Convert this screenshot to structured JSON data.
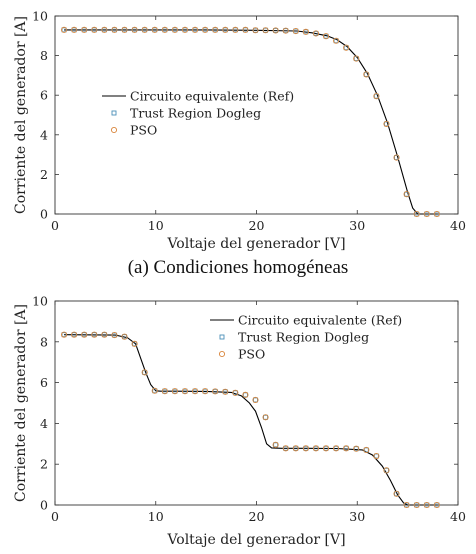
{
  "chart_data": [
    {
      "type": "line",
      "caption": "(a) Condiciones homogéneas",
      "xlabel": "Voltaje del generador [V]",
      "ylabel": "Corriente del generador [A]",
      "xlim": [
        0,
        40
      ],
      "ylim": [
        0,
        10
      ],
      "xticks": [
        0,
        10,
        20,
        30,
        40
      ],
      "yticks": [
        0,
        2,
        4,
        6,
        8,
        10
      ],
      "legend_placement": "center-right",
      "series": [
        {
          "name": "Circuito equivalente (Ref)",
          "style": "line",
          "color": "#000000",
          "x": [
            0.9,
            5,
            10,
            15,
            20,
            24,
            25.5,
            27,
            28,
            29,
            30,
            31,
            32,
            33,
            34,
            35,
            35.5,
            36,
            38
          ],
          "y": [
            9.3,
            9.3,
            9.3,
            9.3,
            9.28,
            9.24,
            9.15,
            9.0,
            8.8,
            8.45,
            7.9,
            7.1,
            6.0,
            4.6,
            2.9,
            1.1,
            0.3,
            0.0,
            0.0
          ]
        },
        {
          "name": "Trust Region Dogleg",
          "style": "marker-square",
          "color": "#4a90b8",
          "x": [
            0.9,
            1.9,
            2.9,
            3.9,
            4.9,
            5.9,
            6.9,
            7.9,
            8.9,
            9.9,
            10.9,
            11.9,
            12.9,
            13.9,
            14.9,
            15.9,
            16.9,
            17.9,
            18.9,
            19.9,
            20.9,
            21.9,
            22.9,
            23.9,
            24.9,
            25.9,
            26.9,
            27.9,
            28.9,
            29.9,
            30.9,
            31.9,
            32.9,
            33.9,
            34.9,
            35.9,
            36.9,
            37.9
          ],
          "y": [
            9.3,
            9.3,
            9.3,
            9.3,
            9.3,
            9.3,
            9.3,
            9.3,
            9.3,
            9.3,
            9.3,
            9.3,
            9.3,
            9.3,
            9.3,
            9.3,
            9.3,
            9.3,
            9.3,
            9.28,
            9.28,
            9.27,
            9.26,
            9.24,
            9.2,
            9.12,
            8.98,
            8.75,
            8.4,
            7.85,
            7.05,
            5.95,
            4.55,
            2.85,
            1.0,
            0.0,
            0.0,
            0.0
          ]
        },
        {
          "name": "PSO",
          "style": "marker-circle",
          "color": "#d9853b",
          "x": [
            0.9,
            1.9,
            2.9,
            3.9,
            4.9,
            5.9,
            6.9,
            7.9,
            8.9,
            9.9,
            10.9,
            11.9,
            12.9,
            13.9,
            14.9,
            15.9,
            16.9,
            17.9,
            18.9,
            19.9,
            20.9,
            21.9,
            22.9,
            23.9,
            24.9,
            25.9,
            26.9,
            27.9,
            28.9,
            29.9,
            30.9,
            31.9,
            32.9,
            33.9,
            34.9,
            35.9,
            36.9,
            37.9
          ],
          "y": [
            9.3,
            9.3,
            9.3,
            9.3,
            9.3,
            9.3,
            9.3,
            9.3,
            9.3,
            9.3,
            9.3,
            9.3,
            9.3,
            9.3,
            9.3,
            9.3,
            9.3,
            9.3,
            9.3,
            9.28,
            9.28,
            9.27,
            9.26,
            9.24,
            9.2,
            9.12,
            8.98,
            8.75,
            8.4,
            7.85,
            7.05,
            5.95,
            4.55,
            2.85,
            1.0,
            0.0,
            0.0,
            0.0
          ]
        }
      ]
    },
    {
      "type": "line",
      "caption": "",
      "xlabel": "Voltaje del generador [V]",
      "ylabel": "Corriente del generador [A]",
      "xlim": [
        0,
        40
      ],
      "ylim": [
        0,
        10
      ],
      "xticks": [
        0,
        10,
        20,
        30,
        40
      ],
      "yticks": [
        0,
        2,
        4,
        6,
        8,
        10
      ],
      "legend_placement": "top-right",
      "series": [
        {
          "name": "Circuito equivalente (Ref)",
          "style": "line",
          "color": "#000000",
          "x": [
            0.9,
            6,
            7.2,
            8,
            8.5,
            9,
            9.5,
            10,
            10.5,
            12,
            15,
            17.5,
            18.5,
            19.3,
            19.9,
            20.5,
            21,
            21.5,
            22.5,
            25,
            28,
            30.5,
            31.5,
            32.5,
            33.3,
            34,
            34.6,
            35,
            38
          ],
          "y": [
            8.35,
            8.33,
            8.2,
            7.9,
            7.2,
            6.5,
            5.9,
            5.6,
            5.58,
            5.58,
            5.57,
            5.52,
            5.35,
            5.0,
            4.6,
            3.8,
            3.0,
            2.8,
            2.78,
            2.78,
            2.77,
            2.7,
            2.45,
            1.9,
            1.2,
            0.5,
            0.1,
            0.0,
            0.0
          ]
        },
        {
          "name": "Trust Region Dogleg",
          "style": "marker-square",
          "color": "#4a90b8",
          "x": [
            0.9,
            1.9,
            2.9,
            3.9,
            4.9,
            5.9,
            6.9,
            7.9,
            8.9,
            9.9,
            10.9,
            11.9,
            12.9,
            13.9,
            14.9,
            15.9,
            16.9,
            17.9,
            18.9,
            19.9,
            20.9,
            21.9,
            22.9,
            23.9,
            24.9,
            25.9,
            26.9,
            27.9,
            28.9,
            29.9,
            30.9,
            31.9,
            32.9,
            33.9,
            34.9,
            35.9,
            36.9,
            37.9
          ],
          "y": [
            8.35,
            8.35,
            8.35,
            8.35,
            8.35,
            8.33,
            8.25,
            7.9,
            6.5,
            5.6,
            5.58,
            5.58,
            5.58,
            5.58,
            5.58,
            5.57,
            5.55,
            5.5,
            5.4,
            5.15,
            4.3,
            2.95,
            2.78,
            2.78,
            2.78,
            2.78,
            2.78,
            2.78,
            2.78,
            2.76,
            2.7,
            2.4,
            1.7,
            0.55,
            0.0,
            0.0,
            0.0,
            0.0
          ]
        },
        {
          "name": "PSO",
          "style": "marker-circle",
          "color": "#d9853b",
          "x": [
            0.9,
            1.9,
            2.9,
            3.9,
            4.9,
            5.9,
            6.9,
            7.9,
            8.9,
            9.9,
            10.9,
            11.9,
            12.9,
            13.9,
            14.9,
            15.9,
            16.9,
            17.9,
            18.9,
            19.9,
            20.9,
            21.9,
            22.9,
            23.9,
            24.9,
            25.9,
            26.9,
            27.9,
            28.9,
            29.9,
            30.9,
            31.9,
            32.9,
            33.9,
            34.9,
            35.9,
            36.9,
            37.9
          ],
          "y": [
            8.35,
            8.35,
            8.35,
            8.35,
            8.35,
            8.33,
            8.25,
            7.9,
            6.5,
            5.6,
            5.58,
            5.58,
            5.58,
            5.58,
            5.58,
            5.57,
            5.55,
            5.5,
            5.4,
            5.15,
            4.3,
            2.95,
            2.78,
            2.78,
            2.78,
            2.78,
            2.78,
            2.78,
            2.78,
            2.76,
            2.7,
            2.4,
            1.7,
            0.55,
            0.0,
            0.0,
            0.0,
            0.0
          ]
        }
      ]
    }
  ]
}
